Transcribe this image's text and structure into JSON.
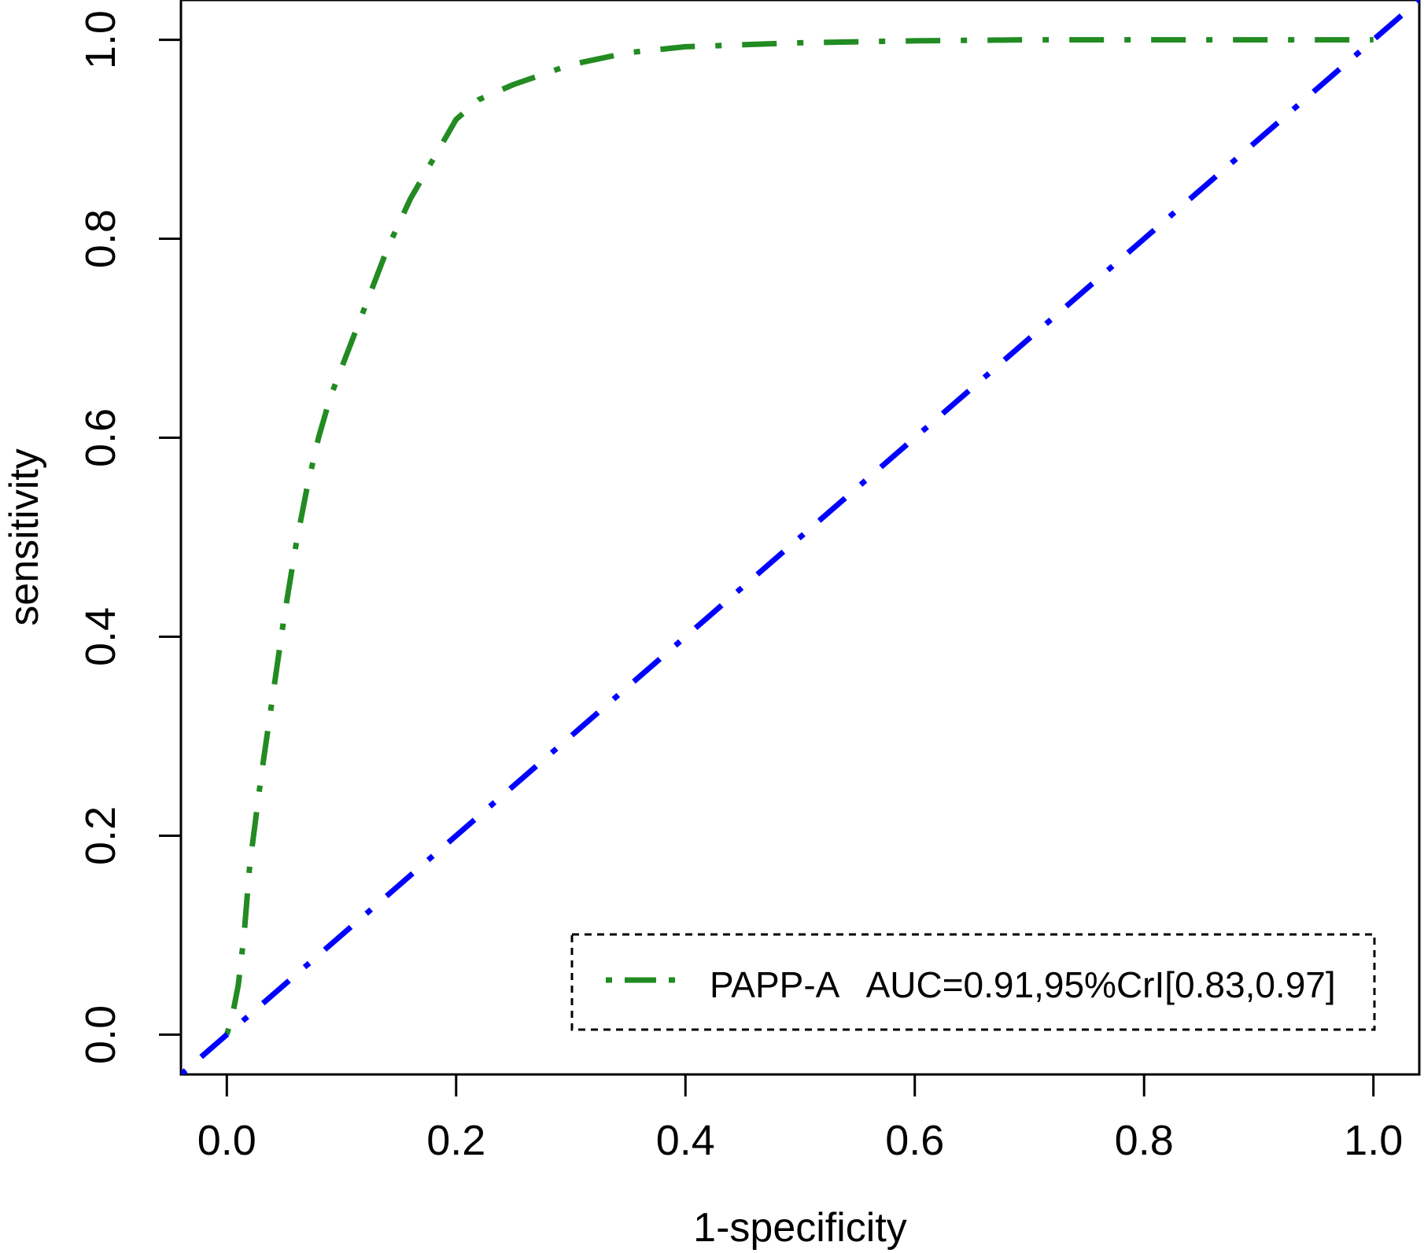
{
  "chart_data": {
    "type": "line",
    "title": "",
    "xlabel": "1-specificity",
    "ylabel": "sensitivity",
    "xlim": [
      -0.04,
      1.04
    ],
    "ylim": [
      -0.04,
      1.04
    ],
    "x_ticks": [
      "0.0",
      "0.2",
      "0.4",
      "0.6",
      "0.8",
      "1.0"
    ],
    "y_ticks": [
      "0.0",
      "0.2",
      "0.4",
      "0.6",
      "0.8",
      "1.0"
    ],
    "grid": false,
    "legend": {
      "position": "bottom-right",
      "entries": [
        {
          "label": "PAPP-A   AUC=0.91,95%CrI[0.83,0.97]",
          "color": "#228B22",
          "dash": "dot-dash"
        }
      ]
    },
    "series": [
      {
        "name": "PAPP-A",
        "color": "#228B22",
        "dash": "dot-dash",
        "x": [
          0.0,
          0.005,
          0.01,
          0.015,
          0.02,
          0.03,
          0.04,
          0.05,
          0.06,
          0.07,
          0.08,
          0.09,
          0.1,
          0.11,
          0.12,
          0.13,
          0.14,
          0.16,
          0.18,
          0.2,
          0.22,
          0.25,
          0.3,
          0.35,
          0.4,
          0.5,
          0.6,
          0.7,
          0.8,
          0.9,
          1.0
        ],
        "y": [
          0.0,
          0.02,
          0.05,
          0.1,
          0.17,
          0.26,
          0.34,
          0.42,
          0.49,
          0.55,
          0.6,
          0.64,
          0.67,
          0.7,
          0.73,
          0.76,
          0.79,
          0.84,
          0.88,
          0.92,
          0.94,
          0.955,
          0.975,
          0.987,
          0.993,
          0.997,
          0.999,
          1.0,
          1.0,
          1.0,
          1.0
        ]
      },
      {
        "name": "reference",
        "color": "#0000FF",
        "dash": "dot-dash",
        "x": [
          -0.04,
          1.04
        ],
        "y": [
          -0.04,
          1.04
        ]
      }
    ]
  }
}
